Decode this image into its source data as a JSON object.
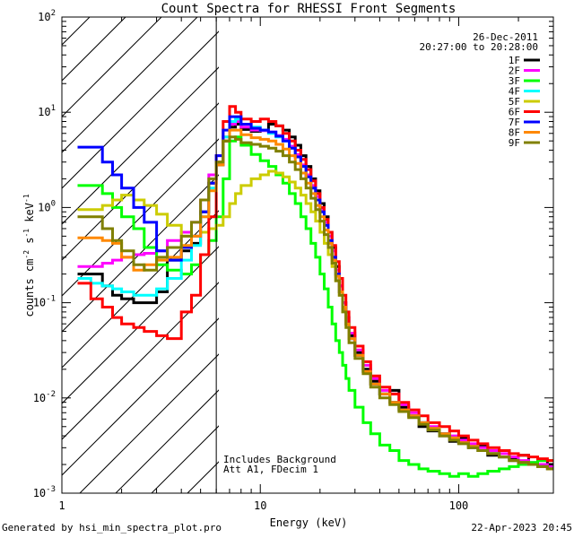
{
  "chart_data": {
    "type": "line",
    "title": "Count Spectra for RHESSI Front Segments",
    "xlabel": "Energy (keV)",
    "ylabel_parts": [
      "counts cm",
      "-2",
      " s",
      "-1",
      " keV",
      "-1"
    ],
    "xscale": "log",
    "yscale": "log",
    "xlim": [
      1,
      300
    ],
    "ylim": [
      0.001,
      100
    ],
    "x_ticks": [
      {
        "value": 1,
        "label": "1"
      },
      {
        "value": 10,
        "label": "10"
      },
      {
        "value": 100,
        "label": "100"
      }
    ],
    "y_ticks": [
      {
        "value": 0.001,
        "base": "10",
        "exp": "-3"
      },
      {
        "value": 0.01,
        "base": "10",
        "exp": "-2"
      },
      {
        "value": 0.1,
        "base": "10",
        "exp": "-1"
      },
      {
        "value": 1,
        "base": "10",
        "exp": "0"
      },
      {
        "value": 10,
        "base": "10",
        "exp": "1"
      },
      {
        "value": 100,
        "base": "10",
        "exp": "2"
      }
    ],
    "cutoff_energy": 6,
    "date_text": "26-Dec-2011",
    "time_range_text": "20:27:00 to 20:28:00",
    "annotations": [
      "Includes Background",
      "Att A1, FDecim 1"
    ],
    "edges": [
      1.2,
      1.4,
      1.6,
      1.8,
      2.0,
      2.3,
      2.6,
      3.0,
      3.4,
      4.0,
      4.5,
      5.0,
      5.5,
      6.0,
      6.5,
      7.0,
      7.5,
      8.0,
      9.0,
      10.0,
      11.0,
      12.0,
      13.0,
      14.0,
      15.0,
      16.0,
      17.0,
      18.0,
      19.0,
      20.0,
      21.0,
      22.0,
      23.0,
      24.0,
      25.0,
      26.0,
      27.0,
      28.0,
      30.0,
      33.0,
      36.0,
      40.0,
      45.0,
      50.0,
      56.0,
      63.0,
      70.0,
      80.0,
      90.0,
      100.0,
      112.0,
      125.0,
      140.0,
      160.0,
      180.0,
      200.0,
      225.0,
      250.0,
      280.0,
      300.0
    ],
    "series": [
      {
        "name": "1F",
        "color": "#000000",
        "values": [
          0.2,
          0.2,
          0.15,
          0.12,
          0.11,
          0.1,
          0.1,
          0.13,
          0.28,
          0.35,
          0.42,
          0.9,
          1.8,
          2.8,
          5.0,
          7.0,
          7.5,
          6.6,
          6.3,
          6.5,
          7.5,
          7.2,
          6.5,
          5.5,
          4.5,
          3.5,
          2.7,
          2.0,
          1.5,
          1.1,
          0.8,
          0.55,
          0.38,
          0.24,
          0.15,
          0.1,
          0.07,
          0.045,
          0.03,
          0.02,
          0.015,
          0.011,
          0.012,
          0.008,
          0.0065,
          0.005,
          0.0045,
          0.004,
          0.0035,
          0.0038,
          0.003,
          0.0032,
          0.0025,
          0.0028,
          0.0023,
          0.0025,
          0.002,
          0.0022,
          0.002
        ]
      },
      {
        "name": "2F",
        "color": "#ff00ff",
        "values": [
          0.24,
          0.24,
          0.26,
          0.28,
          0.3,
          0.32,
          0.33,
          0.35,
          0.45,
          0.55,
          0.7,
          1.2,
          2.2,
          3.5,
          5.5,
          7.5,
          8.0,
          7.0,
          6.5,
          6.4,
          6.2,
          5.7,
          5.2,
          4.4,
          3.6,
          2.8,
          2.2,
          1.7,
          1.3,
          0.95,
          0.7,
          0.5,
          0.35,
          0.22,
          0.15,
          0.1,
          0.07,
          0.048,
          0.032,
          0.022,
          0.016,
          0.012,
          0.011,
          0.0085,
          0.007,
          0.0055,
          0.005,
          0.0042,
          0.004,
          0.0036,
          0.0033,
          0.003,
          0.0028,
          0.0026,
          0.0024,
          0.0022,
          0.0021,
          0.002,
          0.0019
        ]
      },
      {
        "name": "3F",
        "color": "#00ff00",
        "values": [
          1.7,
          1.7,
          1.4,
          1.0,
          0.8,
          0.6,
          0.38,
          0.25,
          0.22,
          0.2,
          0.25,
          0.32,
          0.45,
          0.8,
          2.0,
          5.0,
          5.5,
          4.5,
          3.6,
          3.1,
          2.7,
          2.2,
          1.8,
          1.4,
          1.1,
          0.8,
          0.6,
          0.42,
          0.3,
          0.2,
          0.14,
          0.09,
          0.06,
          0.04,
          0.03,
          0.022,
          0.016,
          0.012,
          0.008,
          0.0055,
          0.0042,
          0.0032,
          0.0028,
          0.0022,
          0.002,
          0.0018,
          0.0017,
          0.0016,
          0.0015,
          0.0016,
          0.0015,
          0.0016,
          0.0017,
          0.0018,
          0.0019,
          0.002,
          0.0021,
          0.0022,
          0.0022
        ]
      },
      {
        "name": "4F",
        "color": "#00ffff",
        "values": [
          0.18,
          0.16,
          0.15,
          0.14,
          0.13,
          0.12,
          0.12,
          0.14,
          0.18,
          0.28,
          0.4,
          0.8,
          1.6,
          3.0,
          5.5,
          8.0,
          8.5,
          7.5,
          7.0,
          6.5,
          6.0,
          5.5,
          5.0,
          4.2,
          3.4,
          2.7,
          2.1,
          1.6,
          1.2,
          0.9,
          0.65,
          0.45,
          0.3,
          0.2,
          0.13,
          0.09,
          0.06,
          0.042,
          0.028,
          0.019,
          0.014,
          0.011,
          0.009,
          0.0075,
          0.0065,
          0.0055,
          0.0048,
          0.0042,
          0.0038,
          0.0034,
          0.0031,
          0.0028,
          0.0026,
          0.0024,
          0.0022,
          0.0021,
          0.002,
          0.0019,
          0.0018
        ]
      },
      {
        "name": "5F",
        "color": "#cccc00",
        "values": [
          0.95,
          0.95,
          1.05,
          1.2,
          1.35,
          1.2,
          1.05,
          0.85,
          0.65,
          0.5,
          0.5,
          0.55,
          0.6,
          0.65,
          0.8,
          1.1,
          1.4,
          1.7,
          2.0,
          2.2,
          2.4,
          2.3,
          2.1,
          1.85,
          1.6,
          1.35,
          1.1,
          0.9,
          0.72,
          0.55,
          0.42,
          0.32,
          0.24,
          0.17,
          0.12,
          0.085,
          0.06,
          0.042,
          0.028,
          0.019,
          0.014,
          0.011,
          0.009,
          0.0075,
          0.0065,
          0.0055,
          0.0048,
          0.0042,
          0.0038,
          0.0034,
          0.0031,
          0.0028,
          0.0026,
          0.0024,
          0.0022,
          0.0021,
          0.002,
          0.0019,
          0.0018
        ]
      },
      {
        "name": "6F",
        "color": "#ff0000",
        "values": [
          0.16,
          0.11,
          0.09,
          0.07,
          0.06,
          0.055,
          0.05,
          0.045,
          0.042,
          0.08,
          0.12,
          0.32,
          0.8,
          3.0,
          8.0,
          11.5,
          10.0,
          8.5,
          8.0,
          8.5,
          8.0,
          7.2,
          6.0,
          5.0,
          4.0,
          3.2,
          2.5,
          1.9,
          1.4,
          1.0,
          0.75,
          0.55,
          0.4,
          0.27,
          0.18,
          0.12,
          0.08,
          0.055,
          0.035,
          0.024,
          0.017,
          0.013,
          0.011,
          0.009,
          0.0075,
          0.0065,
          0.0055,
          0.005,
          0.0045,
          0.004,
          0.0036,
          0.0033,
          0.003,
          0.0028,
          0.0026,
          0.0025,
          0.0024,
          0.0023,
          0.0022
        ]
      },
      {
        "name": "7F",
        "color": "#0000ff",
        "values": [
          4.3,
          4.3,
          3.0,
          2.2,
          1.6,
          1.0,
          0.7,
          0.35,
          0.28,
          0.38,
          0.5,
          0.9,
          1.8,
          3.5,
          6.5,
          9.0,
          9.0,
          7.5,
          6.8,
          6.5,
          6.2,
          5.6,
          5.0,
          4.2,
          3.4,
          2.7,
          2.1,
          1.6,
          1.2,
          0.9,
          0.65,
          0.45,
          0.3,
          0.2,
          0.13,
          0.09,
          0.06,
          0.042,
          0.028,
          0.019,
          0.014,
          0.011,
          0.009,
          0.0075,
          0.0065,
          0.0055,
          0.0048,
          0.0042,
          0.0038,
          0.0034,
          0.0031,
          0.0028,
          0.0026,
          0.0024,
          0.0022,
          0.0021,
          0.002,
          0.0019,
          0.0018
        ]
      },
      {
        "name": "8F",
        "color": "#ff8800",
        "values": [
          0.48,
          0.48,
          0.45,
          0.42,
          0.3,
          0.22,
          0.25,
          0.28,
          0.3,
          0.4,
          0.5,
          0.8,
          1.5,
          2.8,
          5.0,
          6.5,
          6.5,
          5.8,
          5.4,
          5.2,
          5.0,
          4.6,
          4.1,
          3.5,
          2.9,
          2.3,
          1.8,
          1.4,
          1.05,
          0.8,
          0.58,
          0.42,
          0.28,
          0.19,
          0.13,
          0.09,
          0.06,
          0.042,
          0.028,
          0.019,
          0.014,
          0.011,
          0.009,
          0.0075,
          0.0065,
          0.0055,
          0.0048,
          0.0042,
          0.0038,
          0.0034,
          0.0031,
          0.0028,
          0.0026,
          0.0024,
          0.0022,
          0.0021,
          0.002,
          0.0019,
          0.0018
        ]
      },
      {
        "name": "9F",
        "color": "#808000",
        "values": [
          0.8,
          0.8,
          0.6,
          0.45,
          0.35,
          0.25,
          0.22,
          0.3,
          0.38,
          0.5,
          0.7,
          1.2,
          2.0,
          3.0,
          5.0,
          5.5,
          5.2,
          4.8,
          4.6,
          4.4,
          4.2,
          3.9,
          3.5,
          3.0,
          2.5,
          2.0,
          1.6,
          1.25,
          0.95,
          0.72,
          0.52,
          0.38,
          0.26,
          0.17,
          0.12,
          0.08,
          0.055,
          0.038,
          0.026,
          0.018,
          0.013,
          0.01,
          0.0085,
          0.0072,
          0.0062,
          0.0053,
          0.0046,
          0.004,
          0.0036,
          0.0033,
          0.003,
          0.0028,
          0.0026,
          0.0024,
          0.0022,
          0.0021,
          0.002,
          0.0019,
          0.0018
        ]
      }
    ]
  },
  "footer": {
    "generated": "Generated by hsi_min_spectra_plot.pro",
    "date": "22-Apr-2023 20:45"
  }
}
